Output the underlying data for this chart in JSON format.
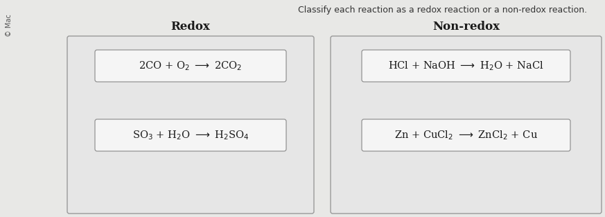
{
  "title_left": "Redox",
  "title_right": "Non-redox",
  "header_text": "Classify each reaction as a redox reaction or a non-redox reaction.",
  "bg_color": "#e8e8e8",
  "box_facecolor": "#e0e0e0",
  "box_edgecolor": "#999999",
  "inner_box_facecolor": "#f5f5f5",
  "inner_box_edgecolor": "#888888",
  "text_color": "#1a1a1a",
  "header_color": "#333333",
  "reactions_left": [
    "2CO + O$_2$ $\\longrightarrow$ 2CO$_2$",
    "SO$_3$ + H$_2$O $\\longrightarrow$ H$_2$SO$_4$"
  ],
  "reactions_right": [
    "HCl + NaOH $\\longrightarrow$ H$_2$O + NaCl",
    "Zn + CuCl$_2$ $\\longrightarrow$ ZnCl$_2$ + Cu"
  ],
  "title_fontsize": 12,
  "reaction_fontsize": 10.5,
  "header_fontsize": 9,
  "fig_bg": "#dcdcdc",
  "left_col_label": "© Mac"
}
